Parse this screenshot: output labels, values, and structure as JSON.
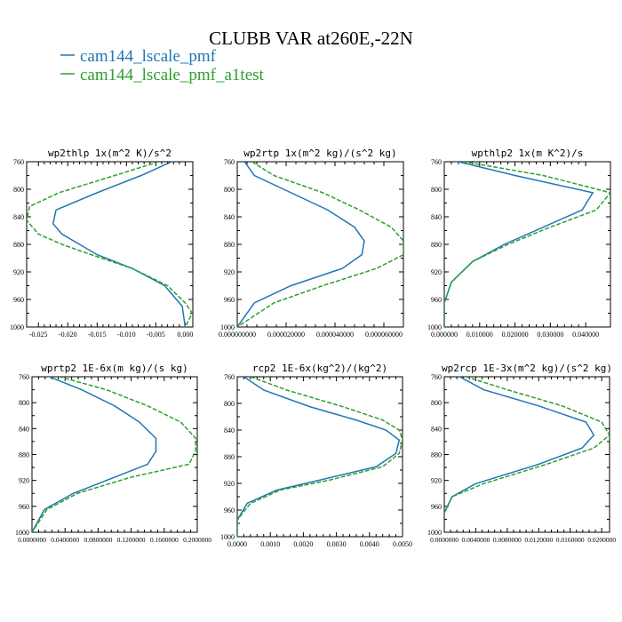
{
  "figure": {
    "title": "CLUBB VAR at260E,-22N",
    "legend": [
      {
        "name": "cam144_lscale_pmf",
        "color": "#1f77b4",
        "dash": "solid"
      },
      {
        "name": "cam144_lscale_pmf_a1test",
        "color": "#2ca02c",
        "dash": "dashed"
      }
    ]
  },
  "chart_data": [
    {
      "type": "line",
      "title": "wp2thlp   1x(m^2 K)/s^2",
      "xlim": [
        -0.027,
        0.0013
      ],
      "ylim": [
        760,
        1000
      ],
      "y_reversed": true,
      "xticks": [
        -0.025,
        -0.02,
        -0.015,
        -0.01,
        -0.005,
        0.0
      ],
      "xtick_labels": [
        "-0.025",
        "-0.020",
        "-0.015",
        "-0.010",
        "-0.005",
        "0.000"
      ],
      "yticks": [
        760,
        800,
        840,
        880,
        920,
        960,
        1000
      ],
      "series": [
        {
          "name": "cam144_lscale_pmf",
          "color": "#1f77b4",
          "dash": "solid",
          "x": [
            -0.001,
            -0.0075,
            -0.015,
            -0.022,
            -0.0225,
            -0.021,
            -0.018,
            -0.015,
            -0.009,
            -0.0035,
            -0.0005,
            0.0
          ],
          "y": [
            755,
            780,
            805,
            830,
            850,
            865,
            880,
            895,
            915,
            940,
            970,
            1000
          ]
        },
        {
          "name": "cam144_lscale_pmf_a1test",
          "color": "#2ca02c",
          "dash": "dashed",
          "x": [
            -0.0045,
            -0.012,
            -0.0215,
            -0.0265,
            -0.027,
            -0.025,
            -0.021,
            -0.016,
            -0.009,
            -0.003,
            0.0,
            0.0012,
            0.0
          ],
          "y": [
            760,
            780,
            805,
            825,
            845,
            865,
            880,
            895,
            915,
            940,
            965,
            980,
            1000
          ]
        }
      ]
    },
    {
      "type": "line",
      "title": "wp2rtp   1x(m^2 kg)/(s^2 kg)",
      "xlim": [
        0.0,
        6.8e-05
      ],
      "ylim": [
        760,
        1000
      ],
      "y_reversed": true,
      "xticks": [
        0.0,
        2e-05,
        4e-05,
        6e-05
      ],
      "xtick_labels": [
        "0.000000000",
        "0.000020000",
        "0.000040000",
        "0.000060000"
      ],
      "yticks": [
        760,
        800,
        840,
        880,
        920,
        960,
        1000
      ],
      "series": [
        {
          "name": "cam144_lscale_pmf",
          "color": "#1f77b4",
          "dash": "solid",
          "x": [
            3e-06,
            7e-06,
            2.2e-05,
            3.7e-05,
            4.8e-05,
            5.2e-05,
            5.1e-05,
            4.3e-05,
            2.2e-05,
            7e-06,
            0.0
          ],
          "y": [
            760,
            780,
            805,
            830,
            855,
            875,
            895,
            915,
            940,
            965,
            1000
          ]
        },
        {
          "name": "cam144_lscale_pmf_a1test",
          "color": "#2ca02c",
          "dash": "dashed",
          "x": [
            6e-06,
            1.5e-05,
            3.5e-05,
            5e-05,
            6.3e-05,
            6.8e-05,
            6.8e-05,
            5.7e-05,
            3.5e-05,
            1.5e-05,
            0.0
          ],
          "y": [
            760,
            780,
            805,
            830,
            855,
            875,
            895,
            915,
            940,
            965,
            1000
          ]
        }
      ]
    },
    {
      "type": "line",
      "title": "wpthlp2   1x(m K^2)/s",
      "xlim": [
        0.0,
        0.047
      ],
      "ylim": [
        760,
        1000
      ],
      "y_reversed": true,
      "xticks": [
        0.0,
        0.01,
        0.02,
        0.03,
        0.04
      ],
      "xtick_labels": [
        "0.000000",
        "0.010000",
        "0.020000",
        "0.030000",
        "0.040000"
      ],
      "yticks": [
        760,
        800,
        840,
        880,
        920,
        960,
        1000
      ],
      "series": [
        {
          "name": "cam144_lscale_pmf",
          "color": "#1f77b4",
          "dash": "solid",
          "x": [
            0.0,
            0.02,
            0.042,
            0.039,
            0.028,
            0.017,
            0.008,
            0.002,
            0.0,
            0.0
          ],
          "y": [
            755,
            780,
            805,
            830,
            855,
            880,
            905,
            935,
            965,
            1000
          ]
        },
        {
          "name": "cam144_lscale_pmf_a1test",
          "color": "#2ca02c",
          "dash": "dashed",
          "x": [
            0.0,
            0.028,
            0.047,
            0.043,
            0.03,
            0.018,
            0.008,
            0.002,
            0.0,
            0.0
          ],
          "y": [
            755,
            780,
            805,
            830,
            855,
            880,
            905,
            935,
            965,
            1000
          ]
        }
      ]
    },
    {
      "type": "line",
      "title": "wprtp2   1E-6x(m kg)/(s kg)",
      "xlim": [
        0.0,
        0.2
      ],
      "ylim": [
        760,
        1000
      ],
      "y_reversed": true,
      "xticks": [
        0.0,
        0.04,
        0.08,
        0.12,
        0.16,
        0.2
      ],
      "xtick_labels": [
        "0.0000000",
        "0.0400000",
        "0.0800000",
        "0.1200000",
        "0.1600000",
        "0.2000000"
      ],
      "yticks": [
        760,
        800,
        840,
        880,
        920,
        960,
        1000
      ],
      "series": [
        {
          "name": "cam144_lscale_pmf",
          "color": "#1f77b4",
          "dash": "solid",
          "x": [
            0.015,
            0.06,
            0.1,
            0.13,
            0.15,
            0.15,
            0.14,
            0.1,
            0.05,
            0.015,
            0.0
          ],
          "y": [
            757,
            780,
            805,
            830,
            855,
            875,
            895,
            915,
            940,
            965,
            1000
          ]
        },
        {
          "name": "cam144_lscale_pmf_a1test",
          "color": "#2ca02c",
          "dash": "dashed",
          "x": [
            0.025,
            0.09,
            0.14,
            0.18,
            0.198,
            0.198,
            0.19,
            0.12,
            0.055,
            0.018,
            0.0
          ],
          "y": [
            757,
            780,
            805,
            830,
            855,
            875,
            895,
            915,
            940,
            965,
            1000
          ]
        }
      ]
    },
    {
      "type": "line",
      "title": "rcp2   1E-6x(kg^2)/(kg^2)",
      "xlim": [
        0.0,
        0.005
      ],
      "ylim": [
        760,
        1000
      ],
      "y_reversed": true,
      "xticks": [
        0.0,
        0.001,
        0.002,
        0.003,
        0.004,
        0.005
      ],
      "xtick_labels": [
        "0.0000",
        "0.0010",
        "0.0020",
        "0.0030",
        "0.0040",
        "0.0050"
      ],
      "yticks": [
        760,
        800,
        840,
        880,
        920,
        960,
        1000
      ],
      "series": [
        {
          "name": "cam144_lscale_pmf",
          "color": "#1f77b4",
          "dash": "solid",
          "x": [
            0.0002,
            0.0008,
            0.0022,
            0.0036,
            0.0045,
            0.0049,
            0.0048,
            0.0042,
            0.0025,
            0.0012,
            0.0003,
            0.0,
            0.0
          ],
          "y": [
            760,
            780,
            805,
            825,
            840,
            855,
            875,
            895,
            915,
            930,
            950,
            975,
            1000
          ]
        },
        {
          "name": "cam144_lscale_pmf_a1test",
          "color": "#2ca02c",
          "dash": "dashed",
          "x": [
            0.0004,
            0.0015,
            0.0032,
            0.0044,
            0.0049,
            0.005,
            0.0049,
            0.0044,
            0.0028,
            0.0013,
            0.0004,
            0.0,
            0.0
          ],
          "y": [
            760,
            780,
            805,
            825,
            840,
            855,
            875,
            895,
            915,
            930,
            950,
            975,
            1000
          ]
        }
      ]
    },
    {
      "type": "line",
      "title": "wp2rcp   1E-3x(m^2 kg)/(s^2 kg)",
      "xlim": [
        0.0,
        0.021
      ],
      "ylim": [
        760,
        1000
      ],
      "y_reversed": true,
      "xticks": [
        0.0,
        0.004,
        0.008,
        0.012,
        0.016,
        0.02
      ],
      "xtick_labels": [
        "0.0000000",
        "0.0040000",
        "0.0080000",
        "0.0120000",
        "0.0160000",
        "0.0200000"
      ],
      "yticks": [
        760,
        800,
        840,
        880,
        920,
        960,
        1000
      ],
      "series": [
        {
          "name": "cam144_lscale_pmf",
          "color": "#1f77b4",
          "dash": "solid",
          "x": [
            0.0015,
            0.005,
            0.012,
            0.018,
            0.019,
            0.0175,
            0.012,
            0.004,
            0.001,
            0.0
          ],
          "y": [
            757,
            780,
            805,
            830,
            850,
            870,
            895,
            925,
            945,
            970
          ]
        },
        {
          "name": "cam144_lscale_pmf_a1test",
          "color": "#2ca02c",
          "dash": "dashed",
          "x": [
            0.002,
            0.008,
            0.015,
            0.02,
            0.021,
            0.019,
            0.013,
            0.005,
            0.001,
            0.0
          ],
          "y": [
            757,
            780,
            805,
            830,
            850,
            870,
            895,
            925,
            945,
            970
          ]
        }
      ]
    }
  ]
}
